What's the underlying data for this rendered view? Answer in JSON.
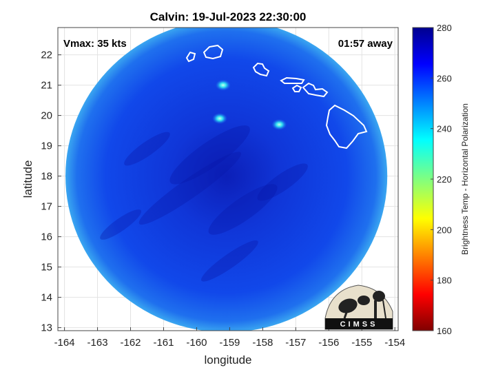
{
  "chart_data": {
    "type": "heatmap",
    "title": "Calvin: 19-Jul-2023 22:30:00",
    "xlabel": "longitude",
    "ylabel": "latitude",
    "xlim": [
      -164.2,
      -153.9
    ],
    "ylim": [
      12.9,
      22.9
    ],
    "x_ticks": [
      -164,
      -163,
      -162,
      -161,
      -160,
      -159,
      -158,
      -157,
      -156,
      -155,
      -154
    ],
    "y_ticks": [
      13,
      14,
      15,
      16,
      17,
      18,
      19,
      20,
      21,
      22
    ],
    "grid": true,
    "annotations": {
      "vmax": "Vmax: 35 kts",
      "time_away": "01:57 away"
    },
    "colorbar": {
      "label": "Brightness Temp - Horizontal Polarization",
      "range": [
        160,
        280
      ],
      "ticks": [
        160,
        180,
        200,
        220,
        240,
        260,
        280
      ],
      "colormap": "jet"
    },
    "field": {
      "center": [
        -159.1,
        18.0
      ],
      "radius_deg": 5.1,
      "typical_value": 263,
      "warm_spots": [
        {
          "lon": -157.5,
          "lat": 19.7,
          "value": 240
        },
        {
          "lon": -159.3,
          "lat": 19.9,
          "value": 244
        },
        {
          "lon": -159.2,
          "lat": 21.0,
          "value": 246
        }
      ]
    },
    "logo_text": "CIMSS"
  },
  "colors": {
    "coast_outline": "#ffffff",
    "scan_fill": "#1040e8",
    "scan_edge": "#2a8ae8",
    "scan_dark": "#0a18a8"
  }
}
